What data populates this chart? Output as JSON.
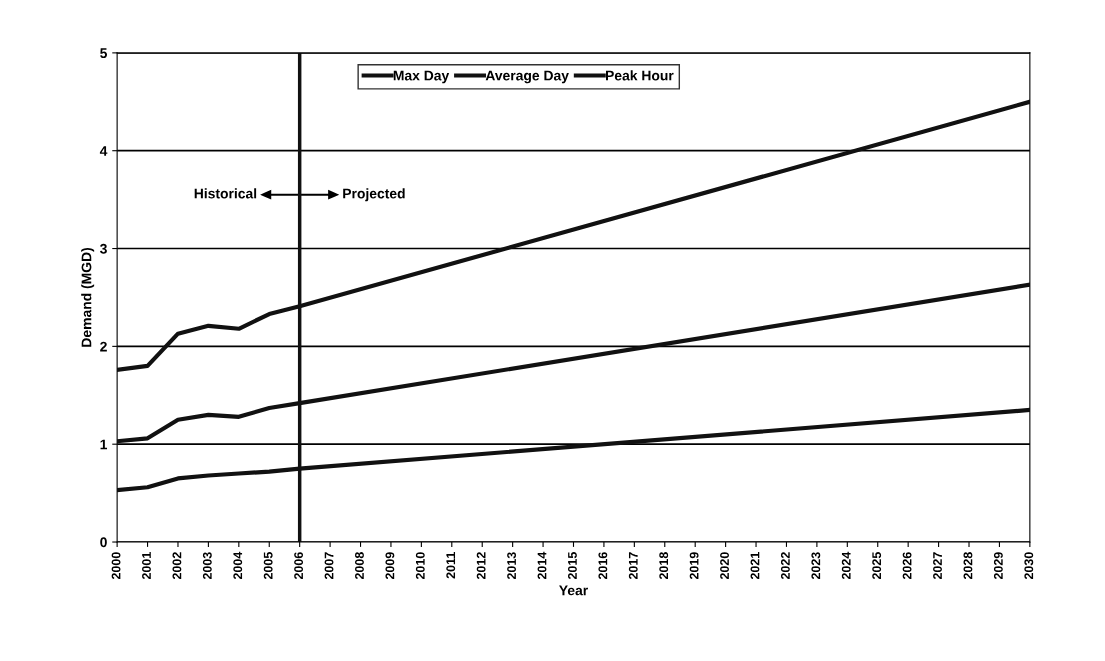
{
  "chart_data": {
    "type": "line",
    "xlabel": "Year",
    "ylabel": "Demand (MGD)",
    "xlim": [
      2000,
      2030
    ],
    "xticks": [
      2000,
      2001,
      2002,
      2003,
      2004,
      2005,
      2006,
      2007,
      2008,
      2009,
      2010,
      2011,
      2012,
      2013,
      2014,
      2015,
      2016,
      2017,
      2018,
      2019,
      2020,
      2021,
      2022,
      2023,
      2024,
      2025,
      2026,
      2027,
      2028,
      2029,
      2030
    ],
    "ylim": [
      0,
      5
    ],
    "yticks": [
      0,
      1,
      2,
      3,
      4,
      5
    ],
    "grid": "y",
    "legend": "top",
    "marker": "none",
    "line_style": "solid",
    "series": [
      {
        "name": "Max Day",
        "color": "#111111",
        "x": [
          2000,
          2001,
          2002,
          2003,
          2004,
          2005,
          2006,
          2030
        ],
        "values": [
          1.03,
          1.06,
          1.25,
          1.3,
          1.28,
          1.37,
          1.42,
          2.63
        ]
      },
      {
        "name": "Average Day",
        "color": "#111111",
        "x": [
          2000,
          2001,
          2002,
          2003,
          2004,
          2005,
          2006,
          2030
        ],
        "values": [
          0.53,
          0.56,
          0.65,
          0.68,
          0.7,
          0.72,
          0.75,
          1.35
        ]
      },
      {
        "name": "Peak Hour",
        "color": "#111111",
        "x": [
          2000,
          2001,
          2002,
          2003,
          2004,
          2005,
          2006,
          2030
        ],
        "values": [
          1.76,
          1.8,
          2.13,
          2.21,
          2.18,
          2.33,
          2.41,
          4.5
        ]
      }
    ],
    "ref_lines": [
      {
        "axis": "x",
        "value": 2006,
        "color": "#111111",
        "line_style": "solid"
      }
    ],
    "annotations": [
      "Historical",
      "Projected"
    ]
  }
}
